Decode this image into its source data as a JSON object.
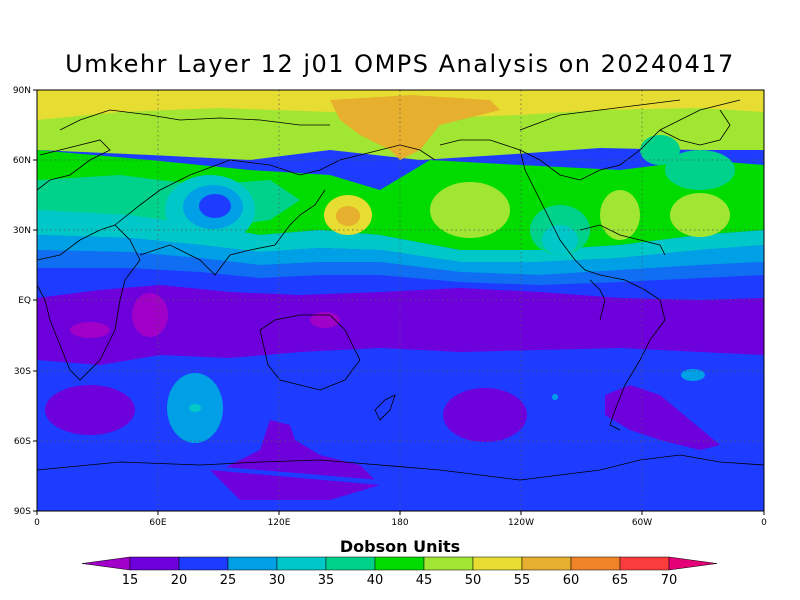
{
  "title": "Umkehr Layer 12 j01 OMPS Analysis on 20240417",
  "map": {
    "lat_ticks": [
      "90N",
      "60N",
      "30N",
      "EQ",
      "30S",
      "60S",
      "90S"
    ],
    "lon_ticks": [
      "0",
      "60E",
      "120E",
      "180",
      "120W",
      "60W",
      "0"
    ],
    "grid": "dotted",
    "projection": "cylindrical-equidistant"
  },
  "colorbar": {
    "title": "Dobson Units",
    "levels": [
      15,
      20,
      25,
      30,
      35,
      40,
      45,
      50,
      55,
      60,
      65,
      70
    ],
    "level_labels": [
      "15",
      "20",
      "25",
      "30",
      "35",
      "40",
      "45",
      "50",
      "55",
      "60",
      "65",
      "70"
    ],
    "colors": [
      "#a000c8",
      "#6e00dc",
      "#1e3cff",
      "#00a0e6",
      "#00c8c8",
      "#00d28c",
      "#00dc00",
      "#a0e632",
      "#e6dc32",
      "#e6af2d",
      "#f08228",
      "#fa3c3c",
      "#e60078"
    ]
  }
}
